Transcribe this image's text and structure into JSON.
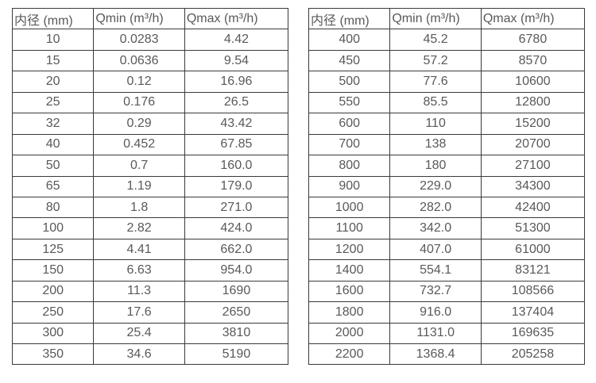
{
  "tables": [
    {
      "headers": [
        "内径 (mm)",
        "Qmin (m³/h)",
        "Qmax (m³/h)"
      ],
      "rows": [
        [
          "10",
          "0.0283",
          "4.42"
        ],
        [
          "15",
          "0.0636",
          "9.54"
        ],
        [
          "20",
          "0.12",
          "16.96"
        ],
        [
          "25",
          "0.176",
          "26.5"
        ],
        [
          "32",
          "0.29",
          "43.42"
        ],
        [
          "40",
          "0.452",
          "67.85"
        ],
        [
          "50",
          "0.7",
          "160.0"
        ],
        [
          "65",
          "1.19",
          "179.0"
        ],
        [
          "80",
          "1.8",
          "271.0"
        ],
        [
          "100",
          "2.82",
          "424.0"
        ],
        [
          "125",
          "4.41",
          "662.0"
        ],
        [
          "150",
          "6.63",
          "954.0"
        ],
        [
          "200",
          "11.3",
          "1690"
        ],
        [
          "250",
          "17.6",
          "2650"
        ],
        [
          "300",
          "25.4",
          "3810"
        ],
        [
          "350",
          "34.6",
          "5190"
        ]
      ]
    },
    {
      "headers": [
        "内径 (mm)",
        "Qmin (m³/h)",
        "Qmax (m³/h)"
      ],
      "rows": [
        [
          "400",
          "45.2",
          "6780"
        ],
        [
          "450",
          "57.2",
          "8570"
        ],
        [
          "500",
          "77.6",
          "10600"
        ],
        [
          "550",
          "85.5",
          "12800"
        ],
        [
          "600",
          "110",
          "15200"
        ],
        [
          "700",
          "138",
          "20700"
        ],
        [
          "800",
          "180",
          "27100"
        ],
        [
          "900",
          "229.0",
          "34300"
        ],
        [
          "1000",
          "282.0",
          "42400"
        ],
        [
          "1100",
          "342.0",
          "51300"
        ],
        [
          "1200",
          "407.0",
          "61000"
        ],
        [
          "1400",
          "554.1",
          "83121"
        ],
        [
          "1600",
          "732.7",
          "108566"
        ],
        [
          "1800",
          "916.0",
          "137404"
        ],
        [
          "2000",
          "1131.0",
          "169635"
        ],
        [
          "2200",
          "1368.4",
          "205258"
        ]
      ]
    }
  ],
  "colors": {
    "text": "#595959",
    "border": "#3a3a3a",
    "background": "#ffffff"
  }
}
